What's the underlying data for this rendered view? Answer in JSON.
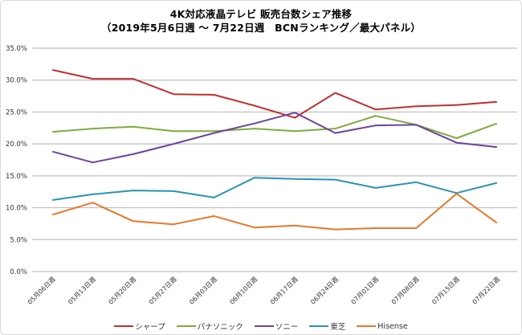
{
  "chart_data": {
    "type": "line",
    "title": "4K対応液晶テレビ 販売台数シェア推移",
    "subtitle": "（2019年5月6日週 〜 7月22日週　BCNランキング／最大パネル）",
    "xlabel": "",
    "ylabel": "",
    "ylim": [
      0,
      35
    ],
    "y_ticks": [
      "0.0%",
      "5.0%",
      "10.0%",
      "15.0%",
      "20.0%",
      "25.0%",
      "30.0%",
      "35.0%"
    ],
    "y_tick_values": [
      0,
      5,
      10,
      15,
      20,
      25,
      30,
      35
    ],
    "grid": true,
    "legend_position": "bottom",
    "categories": [
      "05月06日週",
      "05月13日週",
      "05月20日週",
      "05月27日週",
      "06月03日週",
      "06月10日週",
      "06月17日週",
      "06月24日週",
      "07月01日週",
      "07月08日週",
      "07月15日週",
      "07月22日週"
    ],
    "series": [
      {
        "name": "シャープ",
        "color": "#c0302f",
        "values": [
          31.6,
          30.2,
          30.2,
          27.8,
          27.7,
          26.0,
          24.1,
          28.0,
          25.4,
          25.9,
          26.1,
          26.6
        ]
      },
      {
        "name": "パナソニック",
        "color": "#7fab3e",
        "values": [
          21.9,
          22.4,
          22.7,
          22.0,
          22.0,
          22.4,
          22.0,
          22.4,
          24.4,
          23.0,
          20.9,
          23.2
        ]
      },
      {
        "name": "ソニー",
        "color": "#6a44a0",
        "values": [
          18.8,
          17.1,
          18.4,
          20.0,
          21.7,
          23.2,
          24.9,
          21.7,
          22.9,
          23.0,
          20.2,
          19.5
        ]
      },
      {
        "name": "東芝",
        "color": "#2b93b4",
        "values": [
          11.2,
          12.1,
          12.7,
          12.6,
          11.6,
          14.7,
          14.5,
          14.4,
          13.1,
          14.0,
          12.3,
          13.9
        ]
      },
      {
        "name": "Hisense",
        "color": "#e8772a",
        "values": [
          8.9,
          10.8,
          7.9,
          7.4,
          8.7,
          6.9,
          7.2,
          6.6,
          6.8,
          6.8,
          12.2,
          7.6
        ]
      }
    ]
  }
}
